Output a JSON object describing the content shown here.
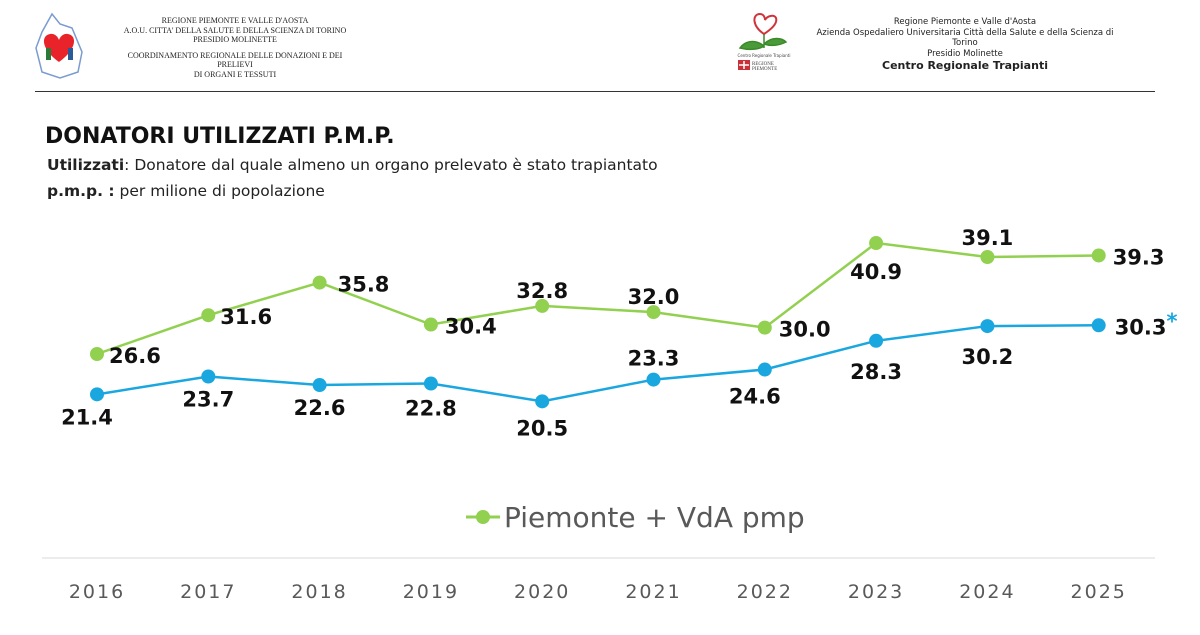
{
  "header_left": {
    "lines": [
      "REGIONE PIEMONTE E VALLE D'AOSTA",
      "A.O.U. CITTA' DELLA SALUTE E DELLA SCIENZA DI TORINO",
      "PRESIDIO MOLINETTE",
      "COORDINAMENTO REGIONALE DELLE DONAZIONI E DEI PRELIEVI",
      "DI ORGANI E TESSUTI"
    ]
  },
  "header_right": {
    "lines": [
      "Regione Piemonte e Valle d'Aosta",
      "Azienda Ospedaliero Universitaria Città della Salute e della Scienza di Torino",
      "Presidio Molinette"
    ],
    "bold": "Centro Regionale Trapianti",
    "logo_text": [
      "Centro Regionale Trapianti",
      "REGIONE PIEMONTE"
    ]
  },
  "title": "DONATORI UTILIZZATI P.M.P.",
  "def1": {
    "term": "Utilizzati",
    "text": ": Donatore dal quale almeno un organo prelevato è stato trapiantato"
  },
  "def2": {
    "term": "p.m.p. :",
    "text": " per milione di popolazione"
  },
  "chart_data": {
    "type": "line",
    "categories": [
      "2016",
      "2017",
      "2018",
      "2019",
      "2020",
      "2021",
      "2022",
      "2023",
      "2024",
      "2025"
    ],
    "series": [
      {
        "name": "Piemonte + VdA pmp",
        "color": "#92d050",
        "values": [
          26.6,
          31.6,
          35.8,
          30.4,
          32.8,
          32.0,
          30.0,
          40.9,
          39.1,
          39.3
        ],
        "labels": [
          "26.6",
          "31.6",
          "35.8",
          "30.4",
          "32.8",
          "32.0",
          "30.0",
          "40.9",
          "39.1",
          "39.3"
        ]
      },
      {
        "color": "#1aa7e0",
        "values": [
          21.4,
          23.7,
          22.6,
          22.8,
          20.5,
          23.3,
          24.6,
          28.3,
          30.2,
          30.3
        ],
        "labels": [
          "21.4",
          "23.7",
          "22.6",
          "22.8",
          "20.5",
          "23.3",
          "24.6",
          "28.3",
          "30.2",
          "30.3"
        ],
        "annotation": "*"
      }
    ],
    "legend": "bottom",
    "grid": false
  }
}
